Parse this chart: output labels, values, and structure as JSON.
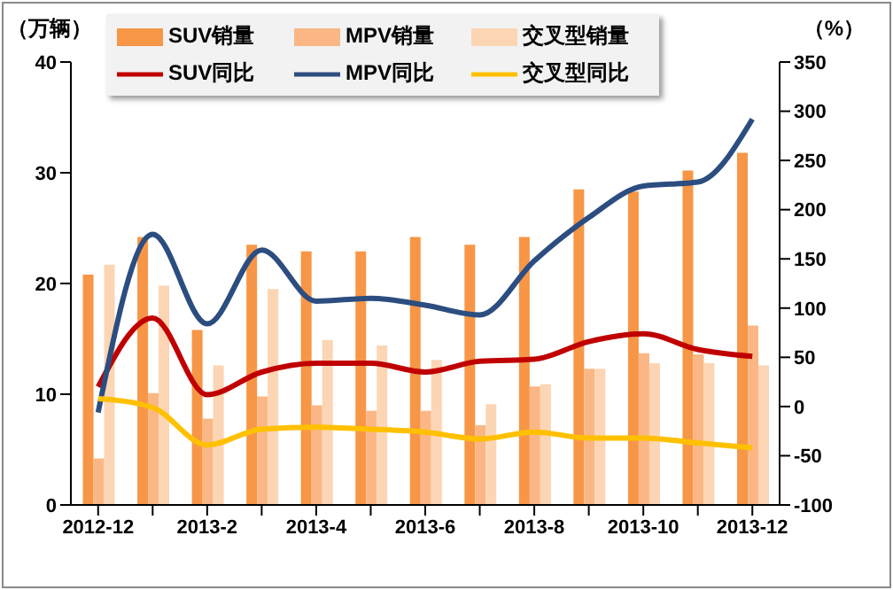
{
  "chart_data": {
    "type": "bar",
    "ylabel": "（万辆）",
    "y2label": "（%）",
    "categories": [
      "2012-12",
      null,
      "2013-2",
      null,
      "2013-4",
      null,
      "2013-6",
      null,
      "2013-8",
      null,
      "2013-10",
      null,
      "2013-12"
    ],
    "series": [
      {
        "name": "SUV销量",
        "color": "#f79646",
        "values": [
          20.8,
          24.2,
          15.8,
          23.5,
          22.9,
          22.9,
          24.2,
          23.5,
          24.2,
          28.5,
          28.3,
          30.2,
          31.8
        ]
      },
      {
        "name": "MPV销量",
        "color": "#fab785",
        "values": [
          4.2,
          10.1,
          7.8,
          9.8,
          9.0,
          8.5,
          8.5,
          7.2,
          10.7,
          12.3,
          13.7,
          13.6,
          16.2
        ]
      },
      {
        "name": "交叉型销量",
        "color": "#fcd5b4",
        "values": [
          21.7,
          19.8,
          12.6,
          19.5,
          14.9,
          14.4,
          13.1,
          9.1,
          10.9,
          12.3,
          12.8,
          12.8,
          12.6
        ]
      },
      {
        "name": "SUV同比",
        "type": "line",
        "axis": "y2",
        "color": "#c00000",
        "values": [
          20,
          90,
          12,
          35,
          44,
          44,
          35,
          46,
          48,
          66,
          74,
          58,
          51
        ]
      },
      {
        "name": "MPV同比",
        "type": "line",
        "axis": "y2",
        "color": "#2c4d80",
        "values": [
          -6,
          175,
          84,
          159,
          107,
          110,
          103,
          93,
          148,
          192,
          224,
          228,
          292
        ]
      },
      {
        "name": "交叉型同比",
        "type": "line",
        "axis": "y2",
        "color": "#ffc000",
        "values": [
          8,
          -1,
          -39,
          -23,
          -21,
          -23,
          -26,
          -33,
          -26,
          -32,
          -32,
          -37,
          -42
        ]
      }
    ],
    "ylim": [
      0,
      40
    ],
    "yticks": [
      0,
      10,
      20,
      30,
      40
    ],
    "y2lim": [
      -100,
      350
    ],
    "y2ticks": [
      -100,
      -50,
      0,
      50,
      100,
      150,
      200,
      250,
      300,
      350
    ],
    "grid": false,
    "legend": "top",
    "marker": "none",
    "line_style": "solid"
  }
}
